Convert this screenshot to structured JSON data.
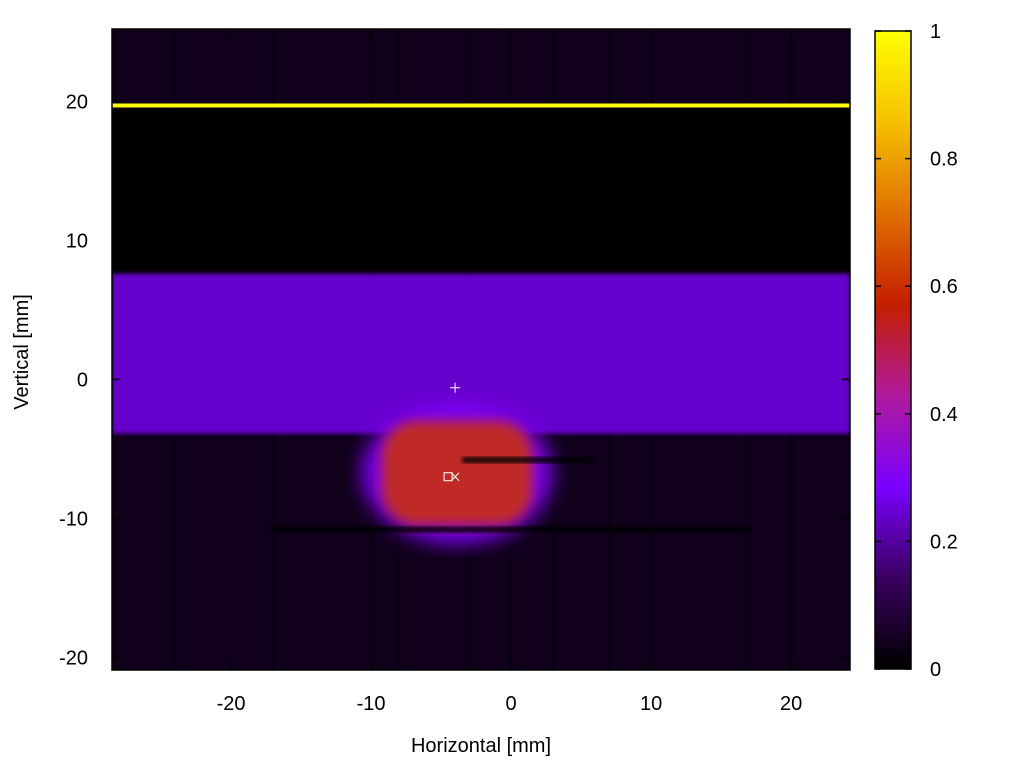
{
  "chart_data": {
    "type": "heatmap",
    "xlabel": "Horizontal [mm]",
    "ylabel": "Vertical [mm]",
    "xlim": [
      -28.5,
      24.2
    ],
    "ylim": [
      -20.9,
      25.2
    ],
    "x_ticks": [
      -20,
      -10,
      0,
      10,
      20
    ],
    "y_ticks": [
      -20,
      -10,
      0,
      10,
      20
    ],
    "x_tick_labels": [
      "-20",
      "-10",
      "0",
      "10",
      "20"
    ],
    "y_tick_labels": [
      "-20",
      "-10",
      "0",
      "10",
      "20"
    ],
    "colorbar": {
      "range": [
        0,
        1
      ],
      "ticks": [
        0,
        0.2,
        0.4,
        0.6,
        0.8,
        1
      ],
      "tick_labels": [
        "0",
        "0.2",
        "0.4",
        "0.6",
        "0.8",
        "1"
      ],
      "colormap": [
        "#000000",
        "#3a0060",
        "#7a00ff",
        "#b01a9c",
        "#c41e00",
        "#e07000",
        "#f5c000",
        "#ffff00"
      ]
    },
    "background_intensity": 0.04,
    "features": [
      {
        "kind": "horizontal_bright_line",
        "y": 19.7,
        "x_range": [
          -28.5,
          24.2
        ],
        "intensity": 1.0
      },
      {
        "kind": "dark_band",
        "y_range": [
          7.6,
          19.4
        ],
        "x_range": [
          -28.5,
          24.2
        ],
        "intensity": 0.0
      },
      {
        "kind": "purple_band",
        "y_range": [
          -3.9,
          7.6
        ],
        "x_range": [
          -28.5,
          24.2
        ],
        "intensity": 0.24
      },
      {
        "kind": "hot_spot",
        "x_range": [
          -8.5,
          0.8
        ],
        "y_range": [
          -10.5,
          -3.0
        ],
        "intensity": 0.5
      },
      {
        "kind": "dark_horizontal_line",
        "y": -10.8,
        "x_range": [
          -17.0,
          17.0
        ],
        "intensity": 0.0
      },
      {
        "kind": "dark_notch",
        "y": -5.8,
        "x_range": [
          -3.5,
          5.8
        ],
        "intensity": 0.0
      }
    ],
    "markers": [
      {
        "symbol": "plus",
        "x": -4.0,
        "y": -0.6
      },
      {
        "symbol": "square",
        "x": -4.5,
        "y": -7.0
      },
      {
        "symbol": "x",
        "x": -4.0,
        "y": -7.0
      }
    ]
  }
}
